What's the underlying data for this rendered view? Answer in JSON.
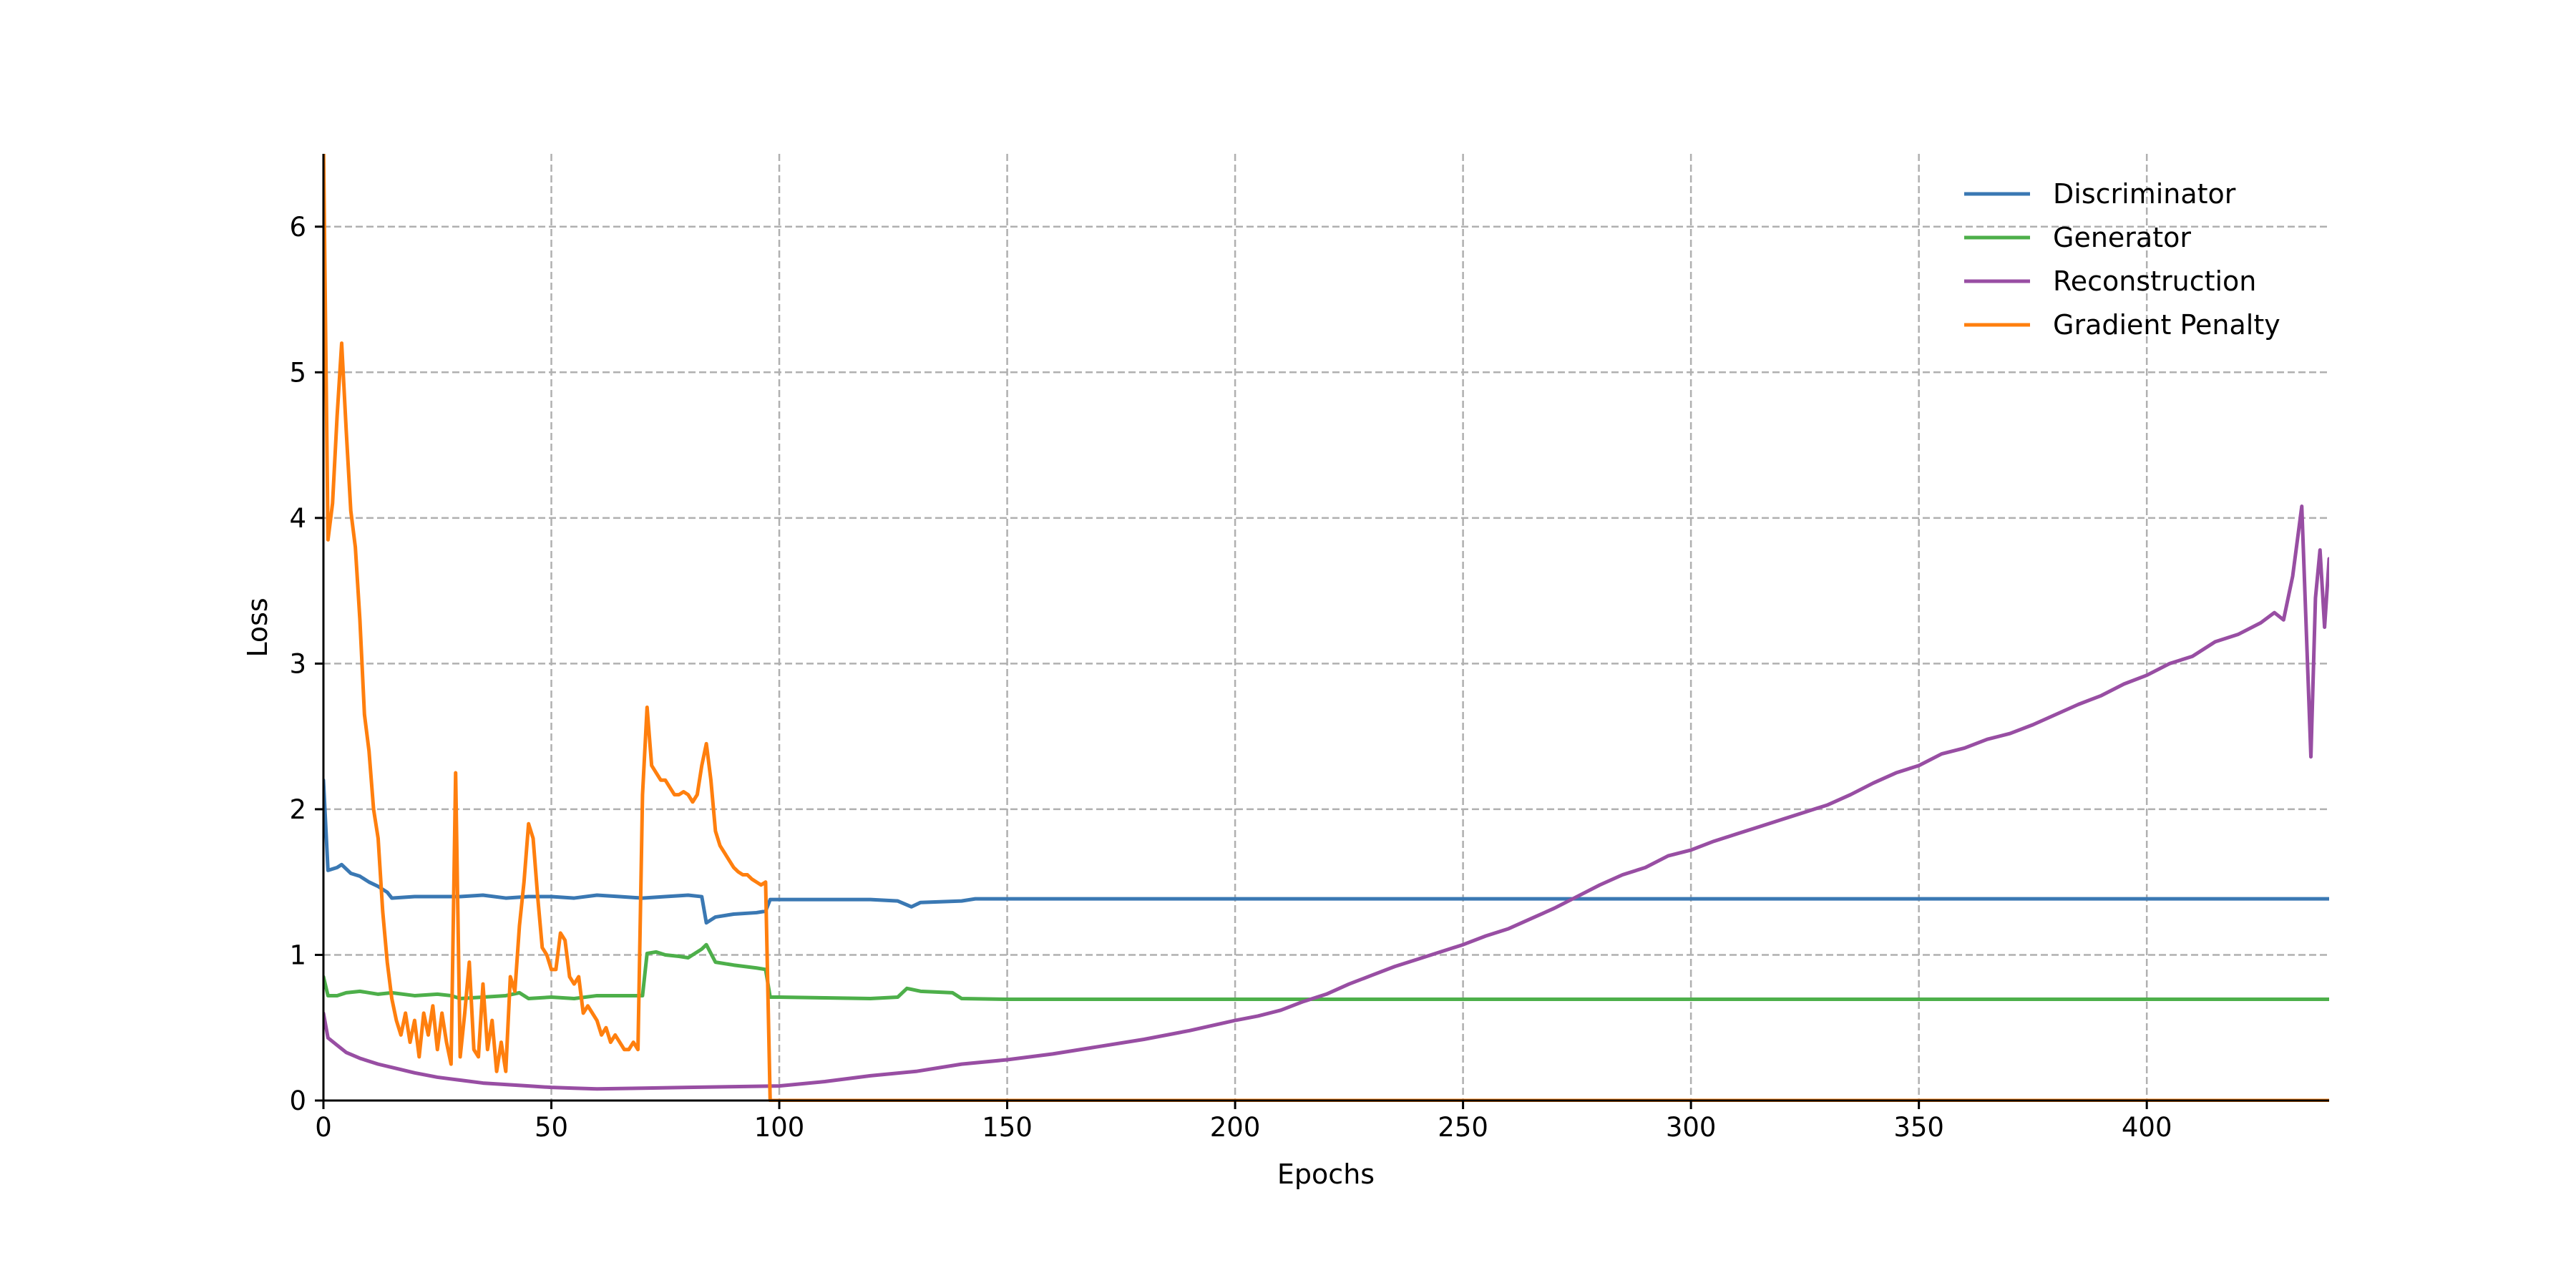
{
  "chart_data": {
    "type": "line",
    "title": "",
    "xlabel": "Epochs",
    "ylabel": "Loss",
    "xlim": [
      0,
      440
    ],
    "ylim": [
      0,
      6.5
    ],
    "xticks": [
      0,
      50,
      100,
      150,
      200,
      250,
      300,
      350,
      400
    ],
    "yticks": [
      0,
      1,
      2,
      3,
      4,
      5,
      6
    ],
    "grid": true,
    "legend_position": "top-right",
    "series": [
      {
        "name": "Discriminator",
        "color": "#3a78b3",
        "points": [
          [
            0,
            2.2
          ],
          [
            1,
            1.58
          ],
          [
            3,
            1.6
          ],
          [
            4,
            1.62
          ],
          [
            6,
            1.56
          ],
          [
            8,
            1.54
          ],
          [
            10,
            1.5
          ],
          [
            12,
            1.47
          ],
          [
            14,
            1.43
          ],
          [
            15,
            1.39
          ],
          [
            20,
            1.4
          ],
          [
            25,
            1.4
          ],
          [
            30,
            1.4
          ],
          [
            35,
            1.41
          ],
          [
            40,
            1.39
          ],
          [
            45,
            1.4
          ],
          [
            50,
            1.4
          ],
          [
            55,
            1.39
          ],
          [
            60,
            1.41
          ],
          [
            65,
            1.4
          ],
          [
            70,
            1.39
          ],
          [
            75,
            1.4
          ],
          [
            80,
            1.41
          ],
          [
            83,
            1.4
          ],
          [
            84,
            1.22
          ],
          [
            86,
            1.26
          ],
          [
            90,
            1.28
          ],
          [
            95,
            1.29
          ],
          [
            97,
            1.3
          ],
          [
            98,
            1.38
          ],
          [
            100,
            1.38
          ],
          [
            110,
            1.38
          ],
          [
            120,
            1.38
          ],
          [
            126,
            1.37
          ],
          [
            129,
            1.33
          ],
          [
            131,
            1.36
          ],
          [
            140,
            1.37
          ],
          [
            143,
            1.385
          ],
          [
            200,
            1.385
          ],
          [
            300,
            1.385
          ],
          [
            440,
            1.385
          ]
        ]
      },
      {
        "name": "Generator",
        "color": "#4daf4a",
        "points": [
          [
            0,
            0.85
          ],
          [
            1,
            0.72
          ],
          [
            3,
            0.72
          ],
          [
            5,
            0.74
          ],
          [
            8,
            0.75
          ],
          [
            12,
            0.73
          ],
          [
            15,
            0.74
          ],
          [
            20,
            0.72
          ],
          [
            25,
            0.73
          ],
          [
            28,
            0.72
          ],
          [
            30,
            0.7
          ],
          [
            35,
            0.71
          ],
          [
            40,
            0.72
          ],
          [
            43,
            0.74
          ],
          [
            45,
            0.7
          ],
          [
            50,
            0.71
          ],
          [
            55,
            0.7
          ],
          [
            60,
            0.72
          ],
          [
            65,
            0.72
          ],
          [
            70,
            0.72
          ],
          [
            71,
            1.01
          ],
          [
            73,
            1.02
          ],
          [
            75,
            1.0
          ],
          [
            78,
            0.99
          ],
          [
            80,
            0.98
          ],
          [
            83,
            1.04
          ],
          [
            84,
            1.07
          ],
          [
            86,
            0.95
          ],
          [
            90,
            0.93
          ],
          [
            95,
            0.91
          ],
          [
            97,
            0.9
          ],
          [
            98,
            0.71
          ],
          [
            100,
            0.71
          ],
          [
            110,
            0.705
          ],
          [
            120,
            0.7
          ],
          [
            126,
            0.71
          ],
          [
            128,
            0.77
          ],
          [
            131,
            0.75
          ],
          [
            138,
            0.74
          ],
          [
            140,
            0.7
          ],
          [
            150,
            0.695
          ],
          [
            200,
            0.695
          ],
          [
            300,
            0.695
          ],
          [
            440,
            0.695
          ]
        ]
      },
      {
        "name": "Reconstruction",
        "color": "#984ea3",
        "points": [
          [
            0,
            0.6
          ],
          [
            1,
            0.43
          ],
          [
            3,
            0.38
          ],
          [
            5,
            0.33
          ],
          [
            8,
            0.29
          ],
          [
            12,
            0.25
          ],
          [
            16,
            0.22
          ],
          [
            20,
            0.19
          ],
          [
            25,
            0.16
          ],
          [
            30,
            0.14
          ],
          [
            35,
            0.12
          ],
          [
            40,
            0.11
          ],
          [
            45,
            0.1
          ],
          [
            50,
            0.09
          ],
          [
            55,
            0.085
          ],
          [
            60,
            0.08
          ],
          [
            70,
            0.085
          ],
          [
            80,
            0.09
          ],
          [
            90,
            0.095
          ],
          [
            100,
            0.1
          ],
          [
            110,
            0.13
          ],
          [
            120,
            0.17
          ],
          [
            130,
            0.2
          ],
          [
            140,
            0.25
          ],
          [
            150,
            0.28
          ],
          [
            160,
            0.32
          ],
          [
            170,
            0.37
          ],
          [
            180,
            0.42
          ],
          [
            190,
            0.48
          ],
          [
            200,
            0.55
          ],
          [
            205,
            0.58
          ],
          [
            210,
            0.62
          ],
          [
            215,
            0.68
          ],
          [
            220,
            0.73
          ],
          [
            225,
            0.8
          ],
          [
            230,
            0.86
          ],
          [
            235,
            0.92
          ],
          [
            240,
            0.97
          ],
          [
            245,
            1.02
          ],
          [
            250,
            1.07
          ],
          [
            255,
            1.13
          ],
          [
            260,
            1.18
          ],
          [
            265,
            1.25
          ],
          [
            270,
            1.32
          ],
          [
            275,
            1.4
          ],
          [
            280,
            1.48
          ],
          [
            285,
            1.55
          ],
          [
            290,
            1.6
          ],
          [
            295,
            1.68
          ],
          [
            300,
            1.72
          ],
          [
            305,
            1.78
          ],
          [
            310,
            1.83
          ],
          [
            315,
            1.88
          ],
          [
            320,
            1.93
          ],
          [
            325,
            1.98
          ],
          [
            330,
            2.03
          ],
          [
            335,
            2.1
          ],
          [
            340,
            2.18
          ],
          [
            345,
            2.25
          ],
          [
            350,
            2.3
          ],
          [
            355,
            2.38
          ],
          [
            360,
            2.42
          ],
          [
            365,
            2.48
          ],
          [
            370,
            2.52
          ],
          [
            375,
            2.58
          ],
          [
            380,
            2.65
          ],
          [
            385,
            2.72
          ],
          [
            390,
            2.78
          ],
          [
            395,
            2.86
          ],
          [
            400,
            2.92
          ],
          [
            405,
            3.0
          ],
          [
            410,
            3.05
          ],
          [
            415,
            3.15
          ],
          [
            420,
            3.2
          ],
          [
            425,
            3.28
          ],
          [
            428,
            3.35
          ],
          [
            430,
            3.3
          ],
          [
            432,
            3.6
          ],
          [
            434,
            4.08
          ],
          [
            436,
            2.36
          ],
          [
            437,
            3.45
          ],
          [
            438,
            3.78
          ],
          [
            439,
            3.25
          ],
          [
            440,
            3.72
          ]
        ]
      },
      {
        "name": "Gradient Penalty",
        "color": "#ff7f0e",
        "points": [
          [
            0,
            6.6
          ],
          [
            1,
            3.85
          ],
          [
            2,
            4.1
          ],
          [
            3,
            4.7
          ],
          [
            4,
            5.2
          ],
          [
            5,
            4.6
          ],
          [
            6,
            4.05
          ],
          [
            7,
            3.8
          ],
          [
            8,
            3.3
          ],
          [
            9,
            2.65
          ],
          [
            10,
            2.4
          ],
          [
            11,
            2.0
          ],
          [
            12,
            1.8
          ],
          [
            13,
            1.3
          ],
          [
            14,
            0.95
          ],
          [
            15,
            0.7
          ],
          [
            16,
            0.55
          ],
          [
            17,
            0.45
          ],
          [
            18,
            0.6
          ],
          [
            19,
            0.4
          ],
          [
            20,
            0.55
          ],
          [
            21,
            0.3
          ],
          [
            22,
            0.6
          ],
          [
            23,
            0.45
          ],
          [
            24,
            0.65
          ],
          [
            25,
            0.35
          ],
          [
            26,
            0.6
          ],
          [
            27,
            0.4
          ],
          [
            28,
            0.25
          ],
          [
            29,
            2.25
          ],
          [
            30,
            0.3
          ],
          [
            31,
            0.6
          ],
          [
            32,
            0.95
          ],
          [
            33,
            0.35
          ],
          [
            34,
            0.3
          ],
          [
            35,
            0.8
          ],
          [
            36,
            0.35
          ],
          [
            37,
            0.55
          ],
          [
            38,
            0.2
          ],
          [
            39,
            0.4
          ],
          [
            40,
            0.2
          ],
          [
            41,
            0.85
          ],
          [
            42,
            0.75
          ],
          [
            43,
            1.2
          ],
          [
            44,
            1.5
          ],
          [
            45,
            1.9
          ],
          [
            46,
            1.8
          ],
          [
            47,
            1.4
          ],
          [
            48,
            1.05
          ],
          [
            49,
            1.0
          ],
          [
            50,
            0.9
          ],
          [
            51,
            0.9
          ],
          [
            52,
            1.15
          ],
          [
            53,
            1.1
          ],
          [
            54,
            0.85
          ],
          [
            55,
            0.8
          ],
          [
            56,
            0.85
          ],
          [
            57,
            0.6
          ],
          [
            58,
            0.65
          ],
          [
            59,
            0.6
          ],
          [
            60,
            0.55
          ],
          [
            61,
            0.45
          ],
          [
            62,
            0.5
          ],
          [
            63,
            0.4
          ],
          [
            64,
            0.45
          ],
          [
            65,
            0.4
          ],
          [
            66,
            0.35
          ],
          [
            67,
            0.35
          ],
          [
            68,
            0.4
          ],
          [
            69,
            0.35
          ],
          [
            70,
            2.1
          ],
          [
            71,
            2.7
          ],
          [
            72,
            2.3
          ],
          [
            73,
            2.25
          ],
          [
            74,
            2.2
          ],
          [
            75,
            2.2
          ],
          [
            76,
            2.15
          ],
          [
            77,
            2.1
          ],
          [
            78,
            2.1
          ],
          [
            79,
            2.12
          ],
          [
            80,
            2.1
          ],
          [
            81,
            2.05
          ],
          [
            82,
            2.1
          ],
          [
            83,
            2.3
          ],
          [
            84,
            2.45
          ],
          [
            85,
            2.2
          ],
          [
            86,
            1.85
          ],
          [
            87,
            1.75
          ],
          [
            88,
            1.7
          ],
          [
            89,
            1.65
          ],
          [
            90,
            1.6
          ],
          [
            91,
            1.57
          ],
          [
            92,
            1.55
          ],
          [
            93,
            1.55
          ],
          [
            94,
            1.52
          ],
          [
            95,
            1.5
          ],
          [
            96,
            1.48
          ],
          [
            97,
            1.5
          ],
          [
            98,
            0.0
          ],
          [
            100,
            0.0
          ],
          [
            200,
            0.0
          ],
          [
            440,
            0.0
          ]
        ]
      }
    ]
  }
}
